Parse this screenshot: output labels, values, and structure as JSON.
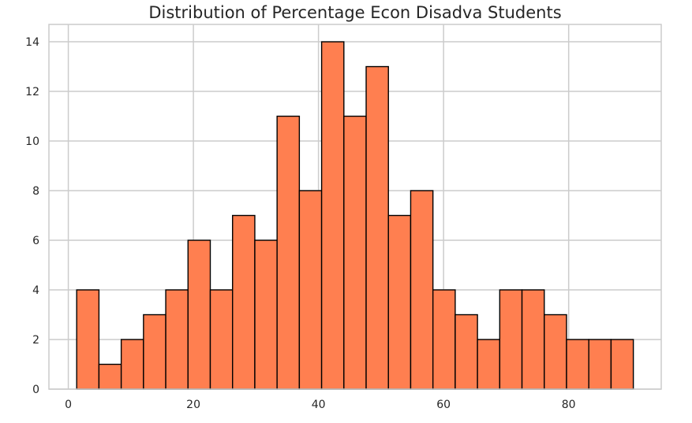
{
  "chart_data": {
    "type": "bar",
    "title": "Distribution of Percentage Econ Disadva Students",
    "xlabel": "",
    "ylabel": "",
    "bin_edges": [
      1.34,
      4.9,
      8.46,
      12.02,
      15.58,
      19.14,
      22.7,
      26.26,
      29.82,
      33.38,
      36.94,
      40.5,
      44.06,
      47.62,
      51.18,
      54.74,
      58.3,
      61.86,
      65.42,
      68.98,
      72.54,
      76.1,
      79.66,
      83.22,
      86.78,
      90.34
    ],
    "values": [
      4,
      1,
      2,
      3,
      4,
      6,
      4,
      7,
      6,
      11,
      8,
      14,
      11,
      13,
      7,
      8,
      4,
      3,
      2,
      4,
      4,
      3,
      2,
      2,
      2
    ],
    "xlim": [
      -3.1,
      94.8
    ],
    "ylim": [
      0,
      14.7
    ],
    "x_ticks": [
      0,
      20,
      40,
      60,
      80
    ],
    "y_ticks": [
      0,
      2,
      4,
      6,
      8,
      10,
      12,
      14
    ],
    "grid": true,
    "colors": {
      "bar_fill": "#ff7f50",
      "bar_edge": "#000000",
      "grid": "#cccccc",
      "frame": "#cccccc",
      "text": "#262626"
    }
  }
}
